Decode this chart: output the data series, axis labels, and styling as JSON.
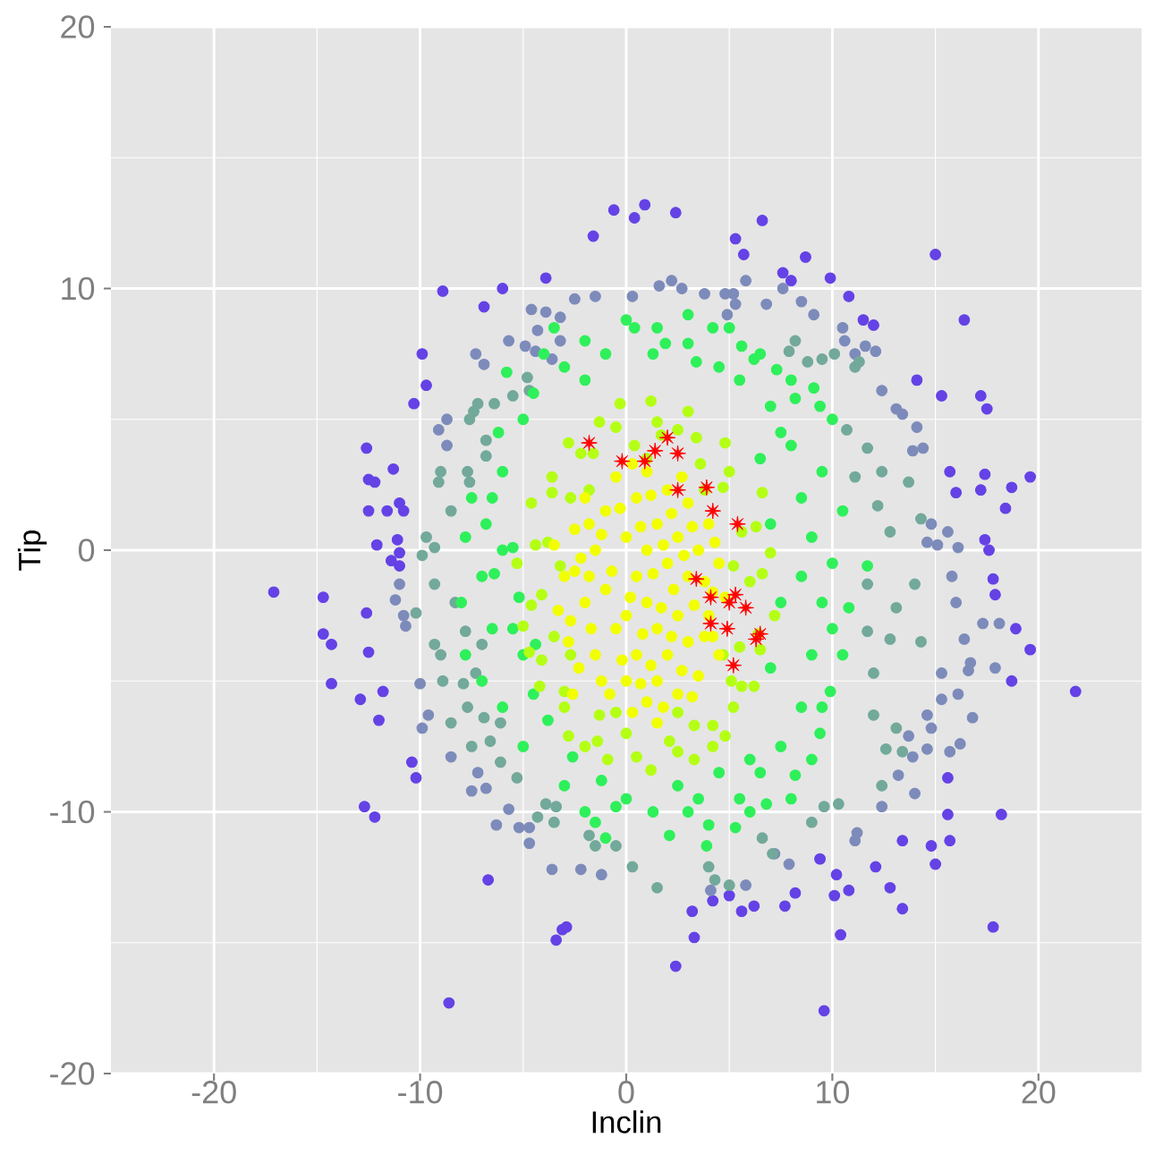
{
  "chart_data": {
    "type": "scatter",
    "xlabel": "Inclin",
    "ylabel": "Tip",
    "xlim": [
      -25,
      25
    ],
    "ylim": [
      -20,
      20
    ],
    "xticks": [
      -20,
      -10,
      0,
      10,
      20
    ],
    "yticks": [
      -20,
      -10,
      0,
      10,
      20
    ],
    "grid": true,
    "marker": "circle",
    "series": [
      {
        "color": "#6442e6",
        "x": [
          -0.6,
          0.4,
          -1.6,
          -3.9,
          -8.9,
          -6.0,
          -6.9,
          -9.9,
          -9.7,
          -10.3,
          -12.6,
          -12.5,
          -12.2,
          -12.5,
          -11.3,
          -11.6,
          -11.0,
          -10.8,
          -12.1,
          -11.1,
          0.9,
          2.4,
          6.6,
          5.3,
          5.7,
          8.7,
          15.0,
          16.4,
          9.9,
          10.8,
          7.6,
          8.0,
          11.5,
          12.0,
          15.3,
          14.1,
          17.2,
          17.5,
          19.6,
          18.7,
          18.4,
          17.4,
          17.2,
          15.7,
          16.0,
          17.4,
          17.6,
          -17.1,
          -14.7,
          -14.7,
          -14.3,
          -14.3,
          -12.6,
          -12.5,
          -12.9,
          -11.8,
          -12.0,
          -12.7,
          -12.2,
          -10.4,
          -10.2,
          -6.7,
          -3.4,
          -3.1,
          -2.9,
          -8.6,
          -11.4,
          -11.0,
          -11.0,
          21.8,
          19.6,
          18.9,
          18.7,
          17.8,
          17.9,
          18.2,
          17.8,
          15.6,
          15.6,
          15.7,
          15.0,
          14.8,
          13.4,
          13.4,
          12.8,
          12.1,
          10.8,
          10.1,
          10.4,
          9.6,
          10.2,
          9.4,
          8.2,
          7.7,
          6.2,
          5.6,
          5.0,
          4.2,
          3.2,
          3.3,
          2.4
        ],
        "values": [
          13.0,
          12.7,
          12.0,
          10.4,
          9.9,
          10.0,
          9.3,
          7.5,
          6.3,
          5.6,
          3.9,
          2.7,
          2.6,
          1.5,
          3.1,
          1.5,
          1.8,
          1.5,
          0.2,
          0.4,
          13.2,
          12.9,
          12.6,
          11.9,
          11.3,
          11.2,
          11.3,
          8.8,
          10.4,
          9.7,
          10.6,
          10.3,
          8.8,
          8.6,
          5.9,
          6.5,
          5.9,
          5.4,
          2.8,
          2.4,
          1.6,
          2.9,
          2.3,
          3.0,
          2.2,
          0.4,
          0.0,
          -1.6,
          -1.8,
          -3.2,
          -3.6,
          -5.1,
          -2.4,
          -3.9,
          -5.7,
          -5.4,
          -6.5,
          -9.8,
          -10.2,
          -8.1,
          -8.7,
          -12.6,
          -14.9,
          -14.5,
          -14.4,
          -17.3,
          -0.4,
          -0.1,
          -0.6,
          -5.4,
          -3.8,
          -3.0,
          -5.0,
          -1.1,
          -1.7,
          -10.1,
          -14.4,
          -8.7,
          -10.1,
          -11.1,
          -12.0,
          -11.3,
          -11.1,
          -13.7,
          -12.9,
          -12.1,
          -13.0,
          -13.2,
          -14.7,
          -17.6,
          -12.4,
          -11.8,
          -13.1,
          -13.6,
          -13.6,
          -13.8,
          -13.2,
          -13.4,
          -13.8,
          -14.8,
          -15.9
        ]
      },
      {
        "color": "#7d8bbb",
        "x": [
          -2.5,
          -1.5,
          -4.6,
          -3.9,
          -3.2,
          -4.3,
          -5.7,
          -4.9,
          -4.4,
          -7.3,
          -6.9,
          -3.6,
          -3.2,
          -9.1,
          -8.7,
          -8.7,
          0.3,
          1.6,
          2.2,
          2.7,
          3.8,
          4.8,
          5.2,
          5.3,
          4.9,
          5.8,
          7.6,
          6.8,
          8.5,
          9.1,
          10.5,
          10.6,
          11.6,
          12.1,
          11.1,
          12.4,
          13.1,
          13.4,
          14.1,
          13.9,
          14.4,
          14.8,
          15.6,
          14.6,
          15.1,
          16.1,
          -11.2,
          -11.0,
          -10.8,
          -10.7,
          -10.0,
          -9.6,
          -9.9,
          -8.5,
          -7.5,
          -6.8,
          -7.2,
          -5.7,
          -6.3,
          -5.2,
          -4.7,
          -4.7,
          -3.6,
          -2.2,
          -1.2,
          17.3,
          18.1,
          16.4,
          16.7,
          16.6,
          17.9,
          16.1,
          15.3,
          16.8,
          16.2,
          15.7,
          14.6,
          14.0,
          13.9,
          13.2,
          12.4,
          11.1,
          11.2,
          14.8,
          14.6,
          13.7,
          15.8,
          16.0,
          15.3,
          7.9,
          7.2,
          5.8,
          4.1
        ],
        "values": [
          9.6,
          9.7,
          9.2,
          9.1,
          8.9,
          8.4,
          8.0,
          7.8,
          7.6,
          7.5,
          7.1,
          7.3,
          8.0,
          4.6,
          5.0,
          4.0,
          9.7,
          10.1,
          10.3,
          10.0,
          9.8,
          9.8,
          9.8,
          9.4,
          9.0,
          10.3,
          10.0,
          9.4,
          9.5,
          9.0,
          8.5,
          8.0,
          7.8,
          7.6,
          7.5,
          6.1,
          5.4,
          5.2,
          4.7,
          3.8,
          3.9,
          1.0,
          0.7,
          0.3,
          0.2,
          0.1,
          -1.9,
          -1.3,
          -2.5,
          -2.9,
          -5.1,
          -6.3,
          -6.8,
          -7.9,
          -9.2,
          -9.1,
          -8.5,
          -9.9,
          -10.5,
          -10.6,
          -10.6,
          -11.2,
          -12.2,
          -12.2,
          -12.4,
          -2.8,
          -2.8,
          -3.4,
          -4.3,
          -4.6,
          -4.5,
          -5.5,
          -5.7,
          -6.4,
          -7.4,
          -7.7,
          -7.6,
          -9.3,
          -7.9,
          -8.6,
          -9.8,
          -11.1,
          -10.8,
          -6.8,
          -6.3,
          -7.1,
          -1.0,
          -2.0,
          -4.7,
          -12.0,
          -11.6,
          -12.8,
          -13.0
        ]
      },
      {
        "color": "#72a99a",
        "x": [
          -7.4,
          -7.6,
          -7.2,
          -6.4,
          -5.5,
          -4.8,
          -4.7,
          -6.8,
          -6.8,
          -9.0,
          -9.1,
          -8.5,
          -9.7,
          -9.3,
          -7.7,
          -7.6,
          11.1,
          11.3,
          10.1,
          10.7,
          11.7,
          12.4,
          13.7,
          14.3,
          12.2,
          12.8,
          11.1,
          7.9,
          8.2,
          8.8,
          9.5,
          -8.5,
          -7.7,
          -6.9,
          -6.1,
          -7.5,
          -6.6,
          -6.1,
          -5.3,
          -4.3,
          -3.5,
          -3.4,
          -3.9,
          -1.8,
          -1.5,
          -0.5,
          0.3,
          -9.3,
          -8.9,
          -7.9,
          -9.0,
          -9.9,
          -9.3,
          -8.3,
          -10.2,
          -7.8,
          -7.0,
          -7.3,
          1.5,
          4.0,
          4.3,
          5.0,
          6.6,
          7.1,
          9.0,
          9.6,
          10.3,
          12.4,
          12.6,
          14.3,
          12.0,
          13.1,
          13.4,
          12.0,
          12.8,
          11.7,
          13.1,
          14.0,
          11.7
        ],
        "values": [
          5.3,
          5.0,
          5.6,
          5.6,
          5.9,
          6.6,
          6.1,
          4.2,
          3.6,
          3.0,
          2.6,
          1.5,
          0.5,
          0.1,
          3.0,
          2.6,
          7.0,
          7.2,
          7.5,
          4.6,
          3.9,
          3.0,
          2.6,
          1.2,
          1.7,
          0.7,
          2.8,
          7.6,
          8.0,
          7.2,
          7.3,
          -6.6,
          -6.0,
          -6.4,
          -6.6,
          -7.5,
          -7.3,
          -8.1,
          -8.7,
          -10.2,
          -10.4,
          -9.8,
          -9.7,
          -10.9,
          -11.3,
          -11.3,
          -12.1,
          -3.6,
          -5.0,
          -5.1,
          -4.0,
          -0.2,
          -1.3,
          -2.0,
          -2.4,
          -3.1,
          -3.6,
          -4.7,
          -12.9,
          -12.1,
          -12.6,
          -12.8,
          -11.0,
          -11.6,
          -10.4,
          -9.8,
          -9.7,
          -9.0,
          -7.6,
          -3.5,
          -6.3,
          -6.8,
          -7.7,
          -4.7,
          -3.4,
          -3.1,
          -2.2,
          -1.3,
          -1.3
        ]
      },
      {
        "color": "#2ef05a",
        "x": [
          5.6,
          6.2,
          7.3,
          8.2,
          9.1,
          9.4,
          3.4,
          4.2,
          3.0,
          1.9,
          0.4,
          1.3,
          -5.0,
          -3.8,
          -2.6,
          -1.2,
          0.0,
          -1.5,
          -5.0,
          -5.5,
          -5.2,
          -6.4,
          -4.4,
          11.7,
          10.8,
          10.5,
          9.9,
          9.4,
          8.2,
          6.8,
          5.3,
          3.9,
          2.1,
          1.3,
          3.0,
          -8.0,
          -7.8,
          -7.8,
          -7.5,
          -7.0,
          -7.0,
          -6.8,
          -6.5,
          -6.2,
          -6.0,
          -6.0,
          -5.8,
          -5.0,
          -4.0,
          -3.0,
          -3.0,
          -2.0,
          -2.0,
          -1.0,
          -0.5,
          0.0,
          1.5,
          2.5,
          3.5,
          4.5,
          4.5,
          5.5,
          5.5,
          6.5,
          6.5,
          7.0,
          7.5,
          8.0,
          8.0,
          8.5,
          8.5,
          8.5,
          9.0,
          9.0,
          9.0,
          9.5,
          9.5,
          9.5,
          10.0,
          10.0,
          10.0,
          10.5,
          -3.5,
          3.0,
          5.0,
          -1.0,
          4.0,
          6.0,
          8.0,
          -6.0,
          -5.5,
          -4.5,
          6.0,
          7.0,
          7.5,
          7.0,
          6.5,
          7.5,
          -6.5,
          -4.5,
          -2.0
        ],
        "values": [
          7.8,
          7.3,
          6.9,
          5.8,
          6.2,
          5.5,
          7.2,
          8.5,
          7.9,
          7.9,
          8.5,
          7.5,
          -4.0,
          -6.5,
          -7.9,
          -8.8,
          -9.5,
          -10.4,
          -7.5,
          0.1,
          -1.8,
          -0.9,
          -3.6,
          -0.6,
          -2.2,
          -4.0,
          -5.4,
          -7.0,
          -8.6,
          -9.7,
          -10.6,
          -11.3,
          -10.9,
          -10.0,
          -10.0,
          -2.0,
          0.5,
          -4.0,
          2.0,
          -1.0,
          -5.0,
          1.0,
          -3.0,
          4.5,
          3.0,
          -6.0,
          6.8,
          5.0,
          7.5,
          7.0,
          -9.0,
          8.0,
          -10.0,
          7.5,
          -9.8,
          8.8,
          8.5,
          -9.0,
          -9.5,
          7.0,
          -8.5,
          6.5,
          -9.5,
          7.5,
          -8.5,
          5.5,
          -7.5,
          6.5,
          4.0,
          2.0,
          -1.0,
          -6.0,
          0.5,
          -4.0,
          -8.0,
          3.0,
          -2.0,
          -6.0,
          5.0,
          -0.5,
          -3.0,
          1.5,
          8.5,
          9.0,
          8.5,
          -11.0,
          -10.5,
          -10.0,
          -9.5,
          0.0,
          -3.0,
          -5.5,
          -8.0,
          -4.5,
          -2.0,
          1.0,
          3.5,
          4.5,
          2.0,
          6.0,
          6.5
        ]
      },
      {
        "color": "#b4ff14",
        "x": [
          6.0,
          5.6,
          4.7,
          3.6,
          1.7,
          0.4,
          -1.6,
          -2.7,
          -3.8,
          -4.1,
          -3.5,
          -3.0,
          -1.3,
          0.0,
          2.1,
          3.3,
          5.1,
          5.5,
          7.0,
          6.6,
          4.8,
          3.0,
          1.2,
          -1.3,
          -2.8,
          -4.6,
          -5.3,
          -5.0,
          -4.2,
          -2.8,
          -0.9,
          1.2,
          3.3,
          4.8,
          6.2,
          7.2,
          6.3,
          2.5,
          -0.3,
          -3.6,
          -4.7,
          -2.0,
          4.2,
          6.5,
          5.2,
          6.6,
          5.0,
          3.4,
          1.5,
          -0.5,
          -2.2,
          -3.6,
          -4.4,
          -4.6,
          -4.1,
          -3.0,
          -1.4,
          0.5,
          2.5,
          4.2,
          5.6,
          6.4,
          5.2,
          3.8,
          1.0,
          -1.8,
          -3.2,
          -2.7,
          -0.5,
          2.5,
          4.7
        ],
        "values": [
          -1.2,
          0.7,
          2.4,
          3.3,
          4.4,
          4.0,
          3.7,
          2.0,
          0.3,
          -1.7,
          -3.3,
          -5.4,
          -6.3,
          -7.0,
          -7.3,
          -6.7,
          -5.0,
          -3.7,
          -0.1,
          2.2,
          4.1,
          5.3,
          5.7,
          4.9,
          4.1,
          1.8,
          -0.5,
          -2.9,
          -5.2,
          -7.1,
          -8.0,
          -8.4,
          -8.0,
          -7.1,
          -5.2,
          -2.5,
          0.9,
          4.6,
          5.6,
          2.8,
          -3.9,
          -7.5,
          -7.5,
          -3.8,
          -6.0,
          -0.9,
          3.0,
          4.3,
          4.9,
          4.7,
          3.7,
          2.2,
          0.2,
          -2.1,
          -4.2,
          -6.0,
          -7.3,
          -7.9,
          -7.7,
          -6.7,
          -5.2,
          -3.2,
          -0.6,
          2.3,
          3.5,
          2.3,
          -0.6,
          -4.0,
          -6.2,
          -6.2,
          -4.0
        ]
      },
      {
        "color": "#f2ff00",
        "x": [
          -3.0,
          -2.8,
          -2.5,
          -2.3,
          -2.0,
          -2.0,
          -1.5,
          -1.5,
          -1.0,
          -1.0,
          -0.8,
          -0.5,
          -0.5,
          0.0,
          0.0,
          0.0,
          0.5,
          0.5,
          0.5,
          1.0,
          1.0,
          1.0,
          1.0,
          1.5,
          1.5,
          1.5,
          2.0,
          2.0,
          2.0,
          2.5,
          2.5,
          2.5,
          3.0,
          3.0,
          3.0,
          3.5,
          3.5,
          4.0,
          4.0,
          4.5,
          4.5,
          4.8,
          -3.3,
          -2.5,
          0.3,
          -2.7,
          -2.2,
          -1.8,
          -1.7,
          -1.2,
          -1.2,
          -0.7,
          -0.3,
          -0.2,
          0.2,
          0.3,
          0.7,
          0.8,
          0.7,
          1.2,
          1.3,
          1.2,
          1.8,
          1.7,
          1.8,
          2.2,
          2.3,
          2.2,
          2.7,
          2.8,
          2.7,
          3.2,
          3.3,
          3.8,
          3.8,
          3.2,
          4.2,
          4.3,
          4.2,
          -2.6,
          -1.8,
          1.5,
          -3.5
        ],
        "values": [
          -1.0,
          -3.5,
          0.8,
          -4.5,
          2.0,
          -2.0,
          0.0,
          -4.0,
          1.5,
          -1.5,
          -5.5,
          2.8,
          -3.0,
          0.5,
          -2.5,
          -5.0,
          2.0,
          -1.0,
          -4.0,
          3.0,
          0.0,
          -2.0,
          -5.8,
          1.0,
          -3.0,
          -5.0,
          2.3,
          -0.5,
          -4.0,
          0.5,
          -2.5,
          -5.5,
          1.8,
          -1.0,
          -3.5,
          0.0,
          -4.8,
          1.0,
          -2.5,
          -0.5,
          -4.0,
          -1.8,
          -2.3,
          -0.8,
          -6.2,
          -2.7,
          -0.3,
          1.0,
          -3.0,
          -5.0,
          0.6,
          -0.8,
          1.6,
          -4.2,
          -1.8,
          3.3,
          0.9,
          -3.2,
          -5.1,
          2.1,
          -0.9,
          -4.4,
          0.2,
          -2.2,
          -6.0,
          1.4,
          -1.5,
          -3.3,
          2.8,
          -0.2,
          -4.6,
          0.9,
          -2.1,
          -1.2,
          -3.3,
          -5.6,
          -1.6,
          0.3,
          -3.3,
          -5.5,
          -1.0,
          -6.6,
          0.2
        ]
      },
      {
        "color": "#ff0000",
        "marker": "star",
        "x": [
          -1.8,
          -0.2,
          0.9,
          1.4,
          2.0,
          2.5,
          2.5,
          3.9,
          4.2,
          5.4,
          3.4,
          4.1,
          5.0,
          5.3,
          5.8,
          4.1,
          4.9,
          6.3,
          6.5,
          5.2
        ],
        "values": [
          4.1,
          3.4,
          3.4,
          3.8,
          4.3,
          3.7,
          2.3,
          2.4,
          1.5,
          1.0,
          -1.1,
          -1.8,
          -2.0,
          -1.7,
          -2.2,
          -2.8,
          -3.0,
          -3.4,
          -3.2,
          -4.4
        ]
      }
    ]
  }
}
